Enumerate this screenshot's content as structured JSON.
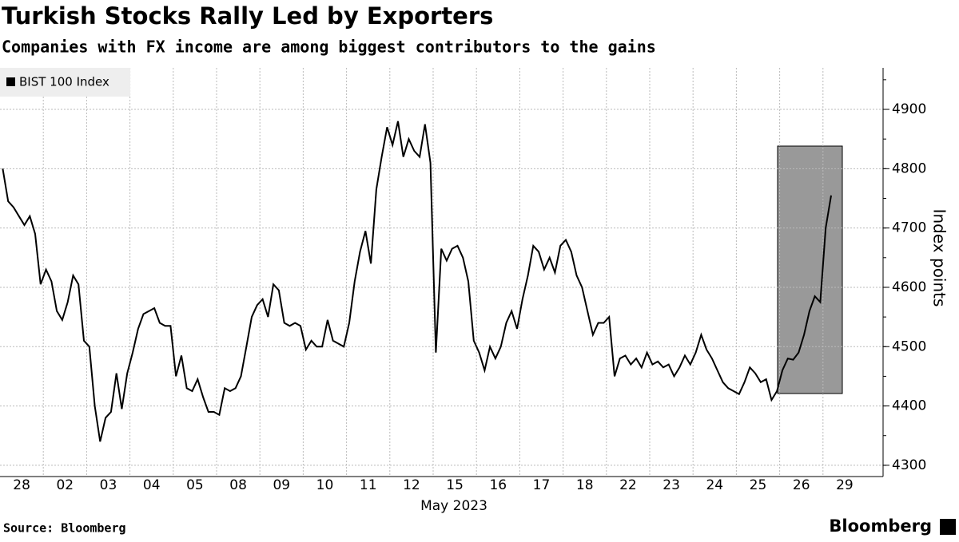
{
  "chart_data": {
    "type": "line",
    "title": "Turkish Stocks Rally Led by Exporters",
    "subtitle": "Companies with FX income are among biggest contributors to the gains",
    "x_label": "May 2023",
    "y_label": "Index points",
    "source": "Source: Bloomberg",
    "brand": "Bloomberg",
    "categories": [
      null,
      null,
      null,
      null,
      "28",
      null,
      null,
      null,
      null,
      null,
      null,
      null,
      "02",
      null,
      null,
      null,
      null,
      null,
      null,
      null,
      "03",
      null,
      null,
      null,
      null,
      null,
      null,
      null,
      "04",
      null,
      null,
      null,
      null,
      null,
      null,
      null,
      "05",
      null,
      null,
      null,
      null,
      null,
      null,
      null,
      "08",
      null,
      null,
      null,
      null,
      null,
      null,
      null,
      "09",
      null,
      null,
      null,
      null,
      null,
      null,
      null,
      "10",
      null,
      null,
      null,
      null,
      null,
      null,
      null,
      "11",
      null,
      null,
      null,
      null,
      null,
      null,
      null,
      "12",
      null,
      null,
      null,
      null,
      null,
      null,
      null,
      "15",
      null,
      null,
      null,
      null,
      null,
      null,
      null,
      "16",
      null,
      null,
      null,
      null,
      null,
      null,
      null,
      "17",
      null,
      null,
      null,
      null,
      null,
      null,
      null,
      "18",
      null,
      null,
      null,
      null,
      null,
      null,
      null,
      "22",
      null,
      null,
      null,
      null,
      null,
      null,
      null,
      "23",
      null,
      null,
      null,
      null,
      null,
      null,
      null,
      "24",
      null,
      null,
      null,
      null,
      null,
      null,
      null,
      "25",
      null,
      null,
      null,
      null,
      null,
      null,
      null,
      "26",
      null,
      null,
      null,
      null,
      null,
      null,
      null,
      "29",
      null,
      null,
      null
    ],
    "series": [
      {
        "name": "BIST 100 Index",
        "color": "#000000",
        "values": [
          4800,
          4745,
          4735,
          4720,
          4705,
          4720,
          4690,
          4605,
          4630,
          4610,
          4560,
          4545,
          4575,
          4620,
          4605,
          4510,
          4500,
          4400,
          4340,
          4380,
          4390,
          4455,
          4395,
          4455,
          4490,
          4530,
          4555,
          4560,
          4565,
          4540,
          4535,
          4535,
          4450,
          4485,
          4430,
          4425,
          4445,
          4415,
          4390,
          4390,
          4385,
          4430,
          4425,
          4430,
          4450,
          4500,
          4550,
          4570,
          4580,
          4550,
          4605,
          4595,
          4540,
          4535,
          4540,
          4535,
          4495,
          4510,
          4500,
          4500,
          4545,
          4510,
          4505,
          4500,
          4540,
          4610,
          4660,
          4695,
          4640,
          4765,
          4820,
          4870,
          4840,
          4880,
          4820,
          4850,
          4830,
          4820,
          4875,
          4810,
          4490,
          4665,
          4645,
          4665,
          4670,
          4650,
          4610,
          4510,
          4490,
          4460,
          4500,
          4480,
          4500,
          4540,
          4560,
          4530,
          4580,
          4620,
          4670,
          4660,
          4630,
          4650,
          4625,
          4670,
          4680,
          4660,
          4620,
          4600,
          4560,
          4520,
          4540,
          4540,
          4550,
          4450,
          4480,
          4485,
          4470,
          4480,
          4465,
          4490,
          4470,
          4475,
          4465,
          4470,
          4450,
          4465,
          4485,
          4470,
          4490,
          4520,
          4495,
          4480,
          4460,
          4440,
          4430,
          4425,
          4420,
          4440,
          4465,
          4455,
          4440,
          4445,
          4410,
          4425,
          4460,
          4480,
          4478,
          4490,
          4520,
          4560,
          4585,
          4575,
          4700,
          4755,
          null,
          null,
          null,
          null,
          null,
          null
        ]
      }
    ],
    "ylim": [
      4281,
      4970
    ],
    "yticks": [
      4300,
      4400,
      4500,
      4600,
      4700,
      4800,
      4900
    ],
    "grid": true,
    "legend": "top-left"
  }
}
